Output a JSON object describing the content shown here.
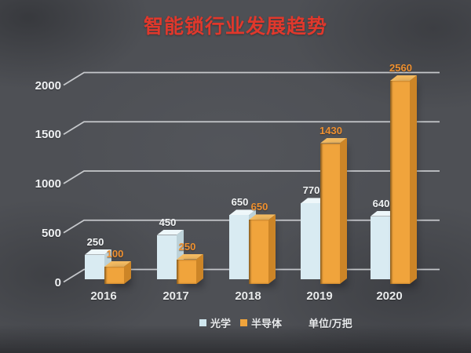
{
  "title": "智能锁行业发展趋势",
  "colors": {
    "title": "#e0382c",
    "optical_bar": "#d9ebf2",
    "semiconductor_bar": "#f0a43c",
    "semiconductor_label": "#ee9030",
    "white_label": "#f2f4f5",
    "gridline": "#d3d5d8",
    "background": "#4e5055"
  },
  "chart_data": {
    "type": "bar",
    "style": "3d-column",
    "title": "智能锁行业发展趋势",
    "categories": [
      "2016",
      "2017",
      "2018",
      "2019",
      "2020"
    ],
    "series": [
      {
        "name": "光学",
        "color": "#d9ebf2",
        "values": [
          250,
          450,
          650,
          770,
          640
        ]
      },
      {
        "name": "半导体",
        "color": "#f0a43c",
        "values": [
          100,
          250,
          650,
          1430,
          2560
        ]
      }
    ],
    "yticks": [
      0,
      500,
      1000,
      1500,
      2000
    ],
    "ylim": [
      0,
      2000
    ],
    "grid": true,
    "legend_position": "bottom",
    "unit_note": "单位/万把"
  }
}
